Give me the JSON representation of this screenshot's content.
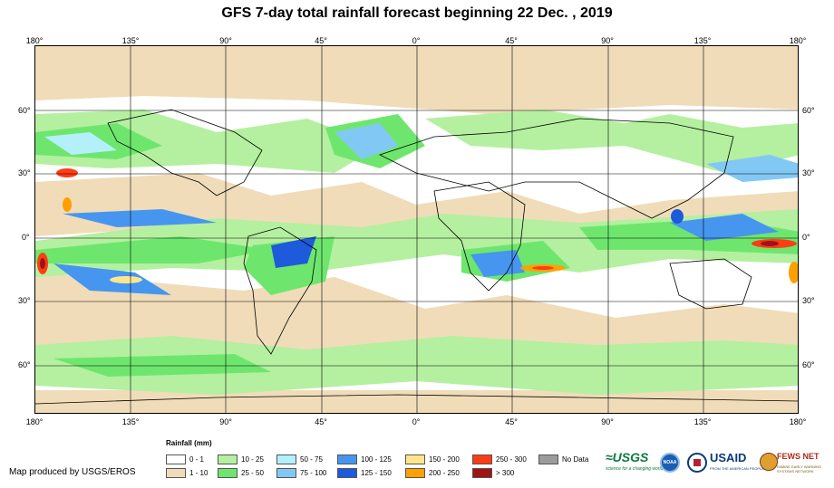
{
  "title": "GFS 7-day total rainfall forecast beginning 22 Dec. , 2019",
  "lon_labels_top": [
    "180°",
    "135°",
    "90°",
    "45°",
    "0°",
    "45°",
    "90°",
    "135°",
    "180°"
  ],
  "lon_labels_bottom": [
    "180°",
    "135°",
    "90°",
    "45°",
    "0°",
    "45°",
    "90°",
    "135°",
    "180°"
  ],
  "lat_labels_left": [
    "60°",
    "30°",
    "0°",
    "30°",
    "60°"
  ],
  "lat_labels_right": [
    "60°",
    "30°",
    "0°",
    "30°",
    "60°"
  ],
  "legend": {
    "title": "Rainfall (mm)",
    "items": [
      {
        "label": "0 - 1",
        "color": "#ffffff"
      },
      {
        "label": "1 - 10",
        "color": "#f0dcb9"
      },
      {
        "label": "10 - 25",
        "color": "#b4f0a0"
      },
      {
        "label": "25 - 50",
        "color": "#6ee66e"
      },
      {
        "label": "50 - 75",
        "color": "#b4f0fa"
      },
      {
        "label": "75 - 100",
        "color": "#82c8f5"
      },
      {
        "label": "100 - 125",
        "color": "#4696f0"
      },
      {
        "label": "125 - 150",
        "color": "#1e5adc"
      },
      {
        "label": "150 - 200",
        "color": "#ffe68c"
      },
      {
        "label": "200 - 250",
        "color": "#ffa000"
      },
      {
        "label": "250 - 300",
        "color": "#ff3c14"
      },
      {
        "label": "> 300",
        "color": "#a01414"
      },
      {
        "label": "No Data",
        "color": "#9b9b9b"
      }
    ]
  },
  "credit": "Map produced by USGS/EROS",
  "logos": {
    "usgs": "≈USGS",
    "usgs_tagline": "science for a changing world",
    "noaa": "NOAA",
    "usaid": "USAID",
    "usaid_tagline": "FROM THE AMERICAN PEOPLE",
    "fews": "FEWS NET",
    "fews_tagline": "FAMINE EARLY WARNING SYSTEMS NETWORK"
  }
}
